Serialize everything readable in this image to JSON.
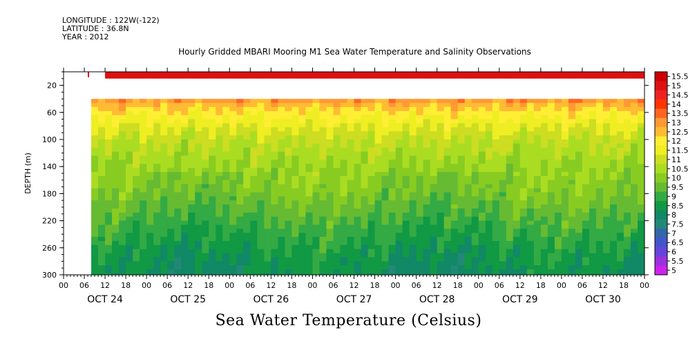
{
  "header": {
    "longitude_line": "LONGITUDE : 122W(-122)",
    "latitude_line": "LATITUDE : 36.8N",
    "year_line": "YEAR : 2012"
  },
  "chart_data": {
    "type": "heatmap",
    "title": "Hourly Gridded MBARI Mooring M1 Sea Water Temperature and Salinity Observations",
    "ylabel": "DEPTH (m)",
    "variable_label": "Sea Water Temperature (Celsius)",
    "y_axis": {
      "range": [
        0,
        300
      ],
      "inverted": true,
      "ticks": [
        20,
        60,
        100,
        140,
        180,
        220,
        260,
        300
      ]
    },
    "x_axis": {
      "range_hours": [
        0,
        168
      ],
      "start_day": "OCT 24",
      "hour_tick_labels": [
        "00",
        "06",
        "12",
        "18",
        "00",
        "06",
        "12",
        "18",
        "00",
        "06",
        "12",
        "18",
        "00",
        "06",
        "12",
        "18",
        "00",
        "06",
        "12",
        "18",
        "00",
        "06",
        "12",
        "18",
        "00",
        "06",
        "12",
        "18",
        "00"
      ],
      "day_labels": [
        "OCT 24",
        "OCT 25",
        "OCT 26",
        "OCT 27",
        "OCT 28",
        "OCT 29",
        "OCT 30"
      ]
    },
    "colorbar": {
      "levels": [
        "15.5",
        "15",
        "14.5",
        "14",
        "13.5",
        "13",
        "12.5",
        "12",
        "11.5",
        "11",
        "10.5",
        "10",
        "9.5",
        "9",
        "8.5",
        "8",
        "7.5",
        "7",
        "6.5",
        "6",
        "5.5",
        "5"
      ],
      "colors": [
        "#cc0000",
        "#dd1111",
        "#ee2222",
        "#ff3300",
        "#ff6622",
        "#ff9933",
        "#ffbb33",
        "#ffee33",
        "#eeee22",
        "#ccdd22",
        "#aadd22",
        "#88cc22",
        "#66bb33",
        "#33aa44",
        "#119944",
        "#118866",
        "#228877",
        "#3366aa",
        "#4455cc",
        "#6644dd",
        "#9933dd",
        "#cc22ee"
      ]
    },
    "surface_band": {
      "depth_range": [
        0,
        10
      ],
      "value": 15,
      "start_hour": 12
    },
    "data_start_hour": 8,
    "profile_hour": 7,
    "profile_depth_range": [
      0,
      8
    ],
    "depth_profile": [
      {
        "depth": 40,
        "value": 12.9
      },
      {
        "depth": 50,
        "value": 12.2
      },
      {
        "depth": 60,
        "value": 11.8
      },
      {
        "depth": 80,
        "value": 11.1
      },
      {
        "depth": 100,
        "value": 10.6
      },
      {
        "depth": 120,
        "value": 10.3
      },
      {
        "depth": 140,
        "value": 10.0
      },
      {
        "depth": 160,
        "value": 9.7
      },
      {
        "depth": 180,
        "value": 9.5
      },
      {
        "depth": 200,
        "value": 9.2
      },
      {
        "depth": 220,
        "value": 8.9
      },
      {
        "depth": 240,
        "value": 8.6
      },
      {
        "depth": 260,
        "value": 8.3
      },
      {
        "depth": 280,
        "value": 8.1
      },
      {
        "depth": 300,
        "value": 7.9
      }
    ]
  }
}
